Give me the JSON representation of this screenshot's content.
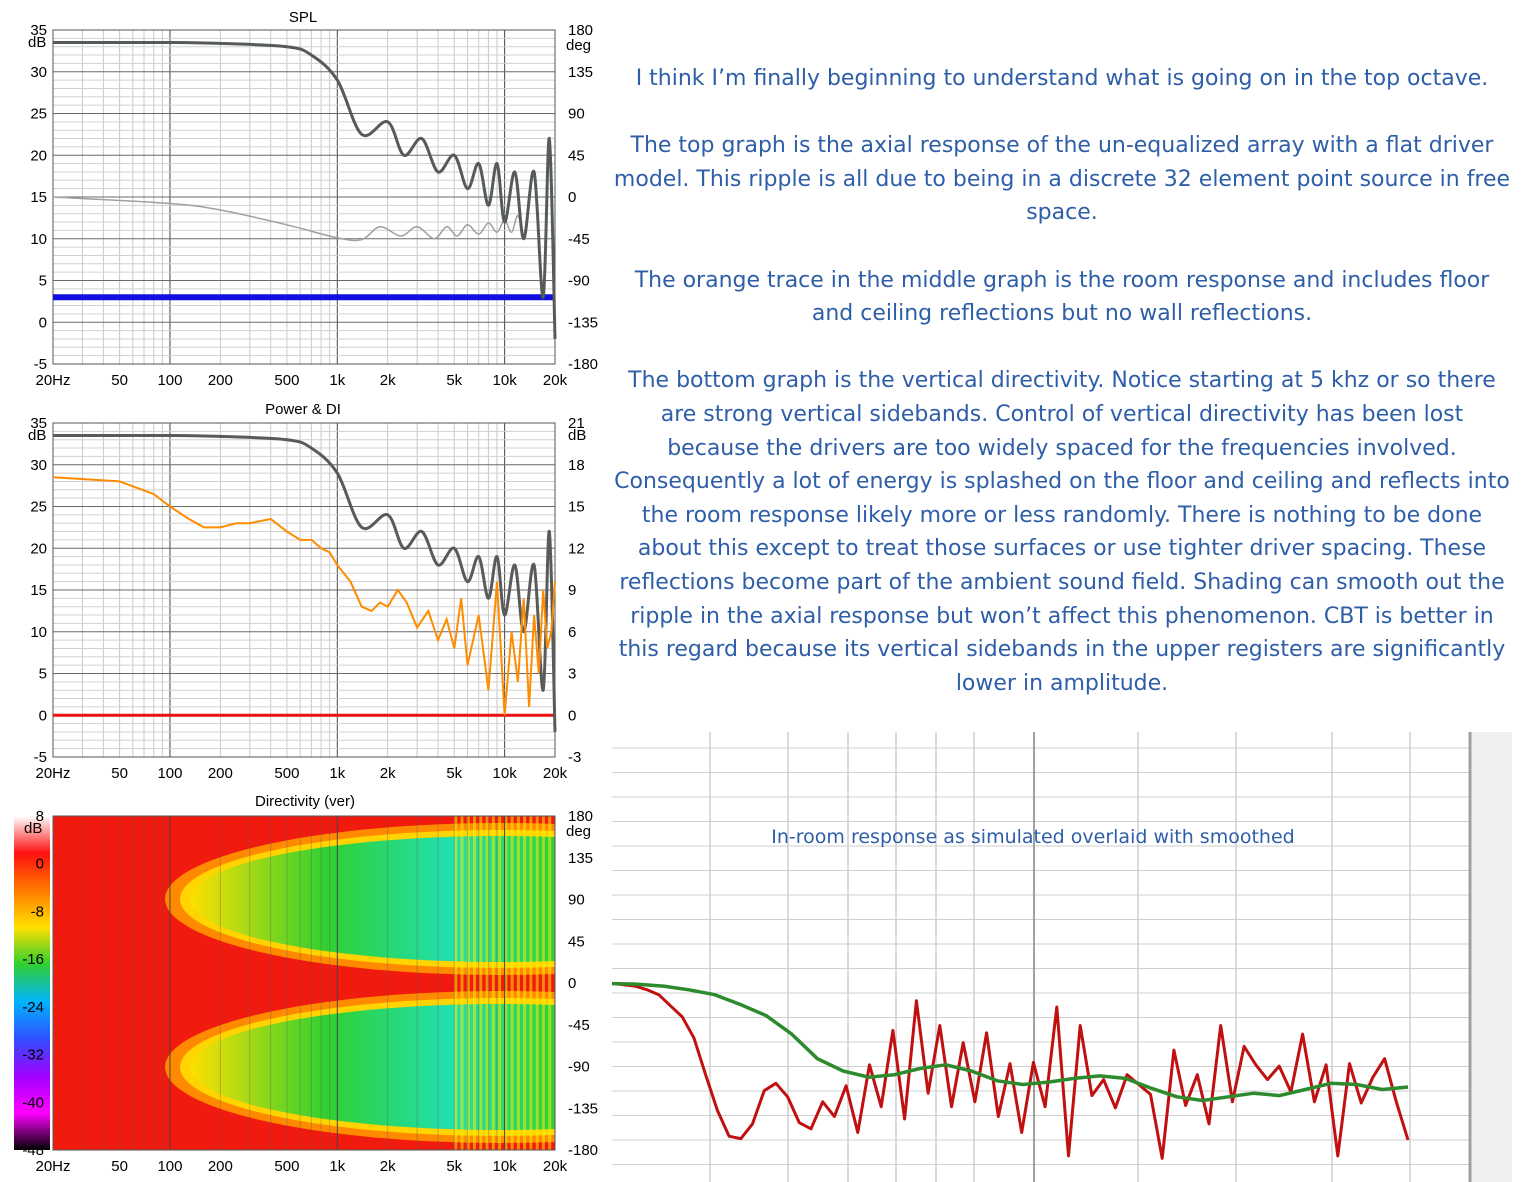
{
  "notes": {
    "paragraphs": [
      "I think I’m finally beginning to understand what is going on in the top octave.",
      "The top graph is the axial response of the un-equalized array with a flat driver model.  This ripple is all due to being in a discrete 32 element point source in free space.",
      "The orange trace in the middle graph is the room response and includes floor and ceiling reflections but no wall reflections.",
      "The bottom graph is the vertical directivity.  Notice starting at 5 khz or so there are strong vertical sidebands. Control of vertical directivity has been lost because the drivers are too widely spaced for the frequencies involved.  Consequently a lot of energy is splashed on the floor and ceiling and reflects into the room response likely more or less randomly.  There is nothing to be done about this except to treat those surfaces or use tighter driver spacing.  These reflections become part of the ambient sound field.  Shading can smooth out the ripple in the axial response but won’t affect this phenomenon.  CBT is better in this regard because its vertical sidebands in the upper registers are significantly lower in amplitude."
    ],
    "caption": "In-room response as simulated overlaid with smoothed"
  },
  "chart_data": [
    {
      "type": "line",
      "title": "SPL",
      "x_scale": "log",
      "xlim": [
        20,
        20000
      ],
      "x_ticks": [
        "20Hz",
        "50",
        "100",
        "200",
        "500",
        "1k",
        "2k",
        "5k",
        "10k",
        "20k"
      ],
      "y_unit": "dB",
      "ylim": [
        -5,
        35
      ],
      "y_ticks": [
        "35",
        "30",
        "25",
        "20",
        "15",
        "10",
        "5",
        "0",
        "-5"
      ],
      "y2_unit": "deg",
      "y2lim": [
        -180,
        180
      ],
      "y2_ticks": [
        "180",
        "135",
        "90",
        "45",
        "0",
        "-45",
        "-90",
        "-135",
        "-180"
      ],
      "grid": true,
      "colors": {
        "spl": "#555b55",
        "phase": "#a0a0a0",
        "reference": "#1010e0"
      },
      "series": [
        {
          "axis": "left",
          "x": [
            20,
            100,
            200,
            500,
            700,
            1000,
            1400,
            2000,
            2500,
            3200,
            4000,
            5000,
            6000,
            7000,
            8000,
            9000,
            10000,
            11500,
            13000,
            15000,
            17000,
            18500,
            20000
          ],
          "y": [
            33.5,
            33.5,
            33.4,
            33,
            32,
            29,
            22.5,
            24,
            20,
            22,
            18,
            20,
            16,
            19,
            14,
            19,
            12,
            18,
            10,
            18,
            3,
            22,
            -2
          ]
        },
        {
          "axis": "right",
          "x": [
            20,
            100,
            200,
            500,
            1000,
            1400,
            1800,
            2400,
            3000,
            3800,
            4500,
            5200,
            6000,
            7000,
            8000,
            9000,
            10000,
            11000,
            12000,
            13000
          ],
          "y": [
            0,
            -7,
            -14,
            -30,
            -44,
            -46,
            -32,
            -42,
            -32,
            -45,
            -32,
            -42,
            -30,
            -40,
            -28,
            -38,
            -25,
            -38,
            -20,
            -45
          ]
        },
        {
          "axis": "left",
          "x": [
            20,
            20000
          ],
          "y": [
            3,
            3
          ]
        }
      ]
    },
    {
      "type": "line",
      "title": "Power & DI",
      "x_scale": "log",
      "xlim": [
        20,
        20000
      ],
      "x_ticks": [
        "20Hz",
        "50",
        "100",
        "200",
        "500",
        "1k",
        "2k",
        "5k",
        "10k",
        "20k"
      ],
      "y_unit": "dB",
      "ylim": [
        -5,
        35
      ],
      "y_ticks": [
        "35",
        "30",
        "25",
        "20",
        "15",
        "10",
        "5",
        "0",
        "-5"
      ],
      "y2_unit": "dB",
      "y2lim": [
        -3,
        21
      ],
      "y2_ticks": [
        "21",
        "18",
        "15",
        "12",
        "9",
        "6",
        "3",
        "0",
        "-3"
      ],
      "grid": true,
      "colors": {
        "power": "#5a5a5a",
        "room": "#ff8c00",
        "reference": "#ee1111"
      },
      "series": [
        {
          "axis": "left",
          "x": [
            20,
            100,
            200,
            500,
            700,
            1000,
            1400,
            2000,
            2500,
            3200,
            4000,
            5000,
            6000,
            7000,
            8000,
            9000,
            10000,
            11500,
            13000,
            15000,
            17000,
            18500,
            20000
          ],
          "y": [
            33.5,
            33.5,
            33.4,
            33,
            32,
            29,
            22.5,
            24,
            20,
            22,
            18,
            20,
            16,
            19,
            14,
            19,
            12,
            18,
            10,
            18,
            3,
            22,
            -2
          ]
        },
        {
          "axis": "left",
          "x": [
            20,
            50,
            80,
            100,
            130,
            160,
            200,
            250,
            300,
            400,
            500,
            600,
            700,
            800,
            900,
            1000,
            1200,
            1400,
            1600,
            1800,
            2000,
            2300,
            2600,
            3000,
            3500,
            4000,
            4500,
            5000,
            5500,
            6000,
            7000,
            8000,
            9000,
            10000,
            11000,
            12000,
            13000,
            14000,
            15000,
            16000,
            17000,
            18000,
            19000,
            20000
          ],
          "y": [
            28.5,
            28,
            26.5,
            25,
            23.5,
            22.5,
            22.5,
            23,
            23,
            23.5,
            22,
            21,
            21,
            20,
            19.5,
            18,
            16,
            13,
            12.5,
            13.5,
            13,
            15,
            13.5,
            10.5,
            12.5,
            9,
            11.5,
            8,
            14,
            6,
            12,
            3,
            16,
            0,
            10,
            4,
            14,
            1,
            12,
            5,
            15,
            8,
            10,
            16
          ]
        },
        {
          "axis": "left",
          "x": [
            20,
            20000
          ],
          "y": [
            0,
            0
          ]
        }
      ]
    },
    {
      "type": "heatmap",
      "title": "Directivity (ver)",
      "x_scale": "log",
      "xlim": [
        20,
        20000
      ],
      "x_ticks": [
        "20Hz",
        "50",
        "100",
        "200",
        "500",
        "1k",
        "2k",
        "5k",
        "10k",
        "20k"
      ],
      "y_unit": "deg",
      "ylim": [
        -180,
        180
      ],
      "y_ticks": [
        "180",
        "135",
        "90",
        "45",
        "0",
        "-45",
        "-90",
        "-135",
        "-180"
      ],
      "colorbar": {
        "unit": "dB",
        "range": [
          -48,
          8
        ],
        "ticks": [
          "8",
          "0",
          "-8",
          "-16",
          "-24",
          "-32",
          "-40",
          "-48"
        ],
        "colors": [
          "#ffffff",
          "#ff1010",
          "#ff7a00",
          "#ffe000",
          "#30d030",
          "#00b4ff",
          "#3050ff",
          "#a000ff",
          "#ff00ff",
          "#000000"
        ]
      }
    },
    {
      "type": "line",
      "title": "",
      "grid": true,
      "colors": {
        "raw": "#c01010",
        "smoothed": "#2d8a2d"
      },
      "series": [
        {
          "values": [
            -0.62,
            -0.5,
            -0.4,
            -0.1,
            0.3,
            1.2,
            2.1,
            3.8,
            6.8,
            9.7,
            11.8,
            12.0,
            10.8,
            8.1,
            7.5,
            8.6,
            10.7,
            11.2,
            9.0,
            10.2,
            7.7,
            11.5,
            6.0,
            9.4,
            3.2,
            10.4,
            0.8,
            8.3,
            2.8,
            9.4,
            4.2,
            9.0,
            3.4,
            10.2,
            5.9,
            11.5,
            5.8,
            9.4,
            1.3,
            13.4,
            2.8,
            8.5,
            7.2,
            9.5,
            6.8,
            7.6,
            8.4,
            13.6,
            4.8,
            9.3,
            6.8,
            10.8,
            2.8,
            9.0,
            4.5,
            6.0,
            7.2,
            6.1,
            8.2,
            3.5,
            9.0,
            6.0,
            13.4,
            5.9,
            9.1,
            7.0,
            5.5,
            9.0,
            12.1
          ]
        },
        {
          "values": [
            -0.6,
            -0.55,
            -0.4,
            -0.1,
            0.3,
            1.1,
            2.0,
            3.5,
            5.5,
            6.5,
            7.0,
            6.8,
            6.3,
            6.0,
            6.5,
            7.3,
            7.6,
            7.4,
            7.1,
            6.9,
            7.1,
            7.9,
            8.6,
            8.9,
            8.6,
            8.3,
            8.5,
            8.0,
            7.5,
            7.6,
            8.0,
            7.8
          ]
        }
      ]
    }
  ]
}
